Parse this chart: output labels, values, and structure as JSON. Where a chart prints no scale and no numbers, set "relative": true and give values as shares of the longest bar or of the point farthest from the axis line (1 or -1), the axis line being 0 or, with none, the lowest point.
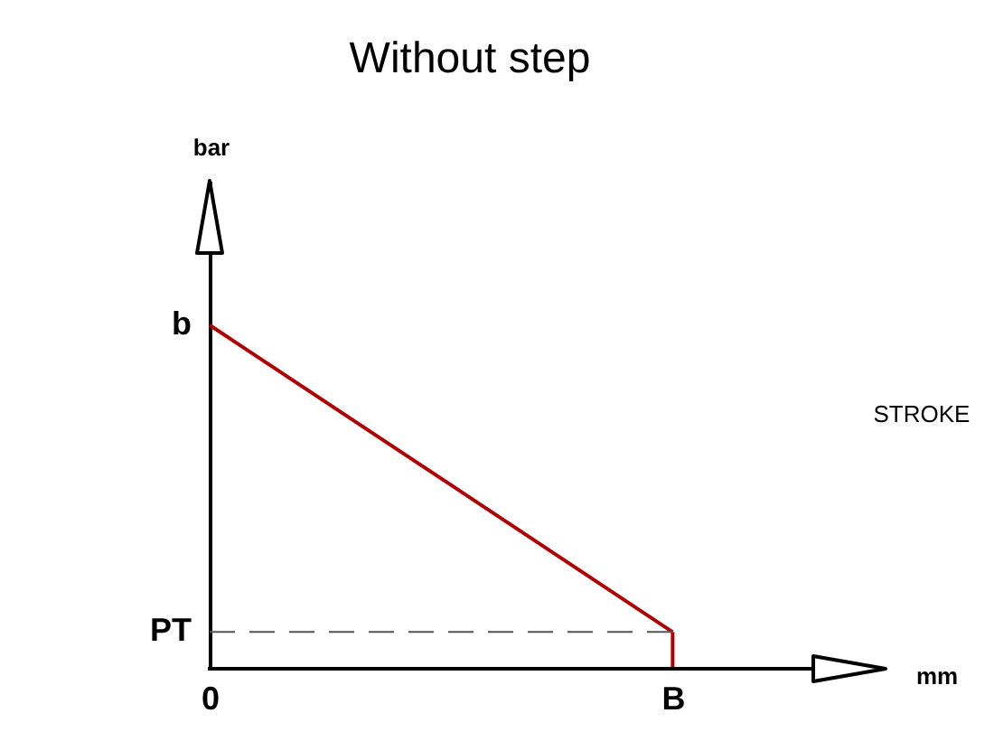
{
  "chart_data": {
    "type": "line",
    "title": "Without step",
    "xlabel": "mm",
    "relative": true,
    "categories": [
      "0",
      "B"
    ],
    "series": [
      {
        "color": "#b00000",
        "values": [
          1,
          0.107
        ]
      },
      {
        "color": "#b00000",
        "x": [
          "B",
          "B"
        ],
        "values": [
          0.107,
          0
        ]
      }
    ],
    "ref_lines": [
      {
        "axis": "y",
        "value": 0.107,
        "line_style": "dashed",
        "color": "#555555",
        "label": "PT"
      }
    ],
    "annotations": [
      {
        "text": "b",
        "x": "0",
        "y": 1
      },
      "bar",
      "STROKE"
    ]
  }
}
